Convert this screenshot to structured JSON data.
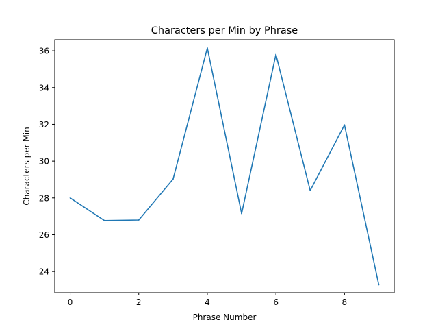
{
  "chart_data": {
    "type": "line",
    "title": "Characters per Min by Phrase",
    "xlabel": "Phrase Number",
    "ylabel": "Characters per Min",
    "x": [
      0,
      1,
      2,
      3,
      4,
      5,
      6,
      7,
      8,
      9
    ],
    "series": [
      {
        "values": [
          28.0,
          26.77,
          26.8,
          29.02,
          36.15,
          27.15,
          35.8,
          28.4,
          31.97,
          23.28
        ],
        "color": "#1f77b4"
      }
    ],
    "xlim": [
      -0.45,
      9.45
    ],
    "ylim": [
      22.85,
      36.6
    ],
    "xticks": [
      0,
      2,
      4,
      6,
      8
    ],
    "yticks": [
      24,
      26,
      28,
      30,
      32,
      34,
      36
    ],
    "grid": false,
    "legend": "none"
  }
}
